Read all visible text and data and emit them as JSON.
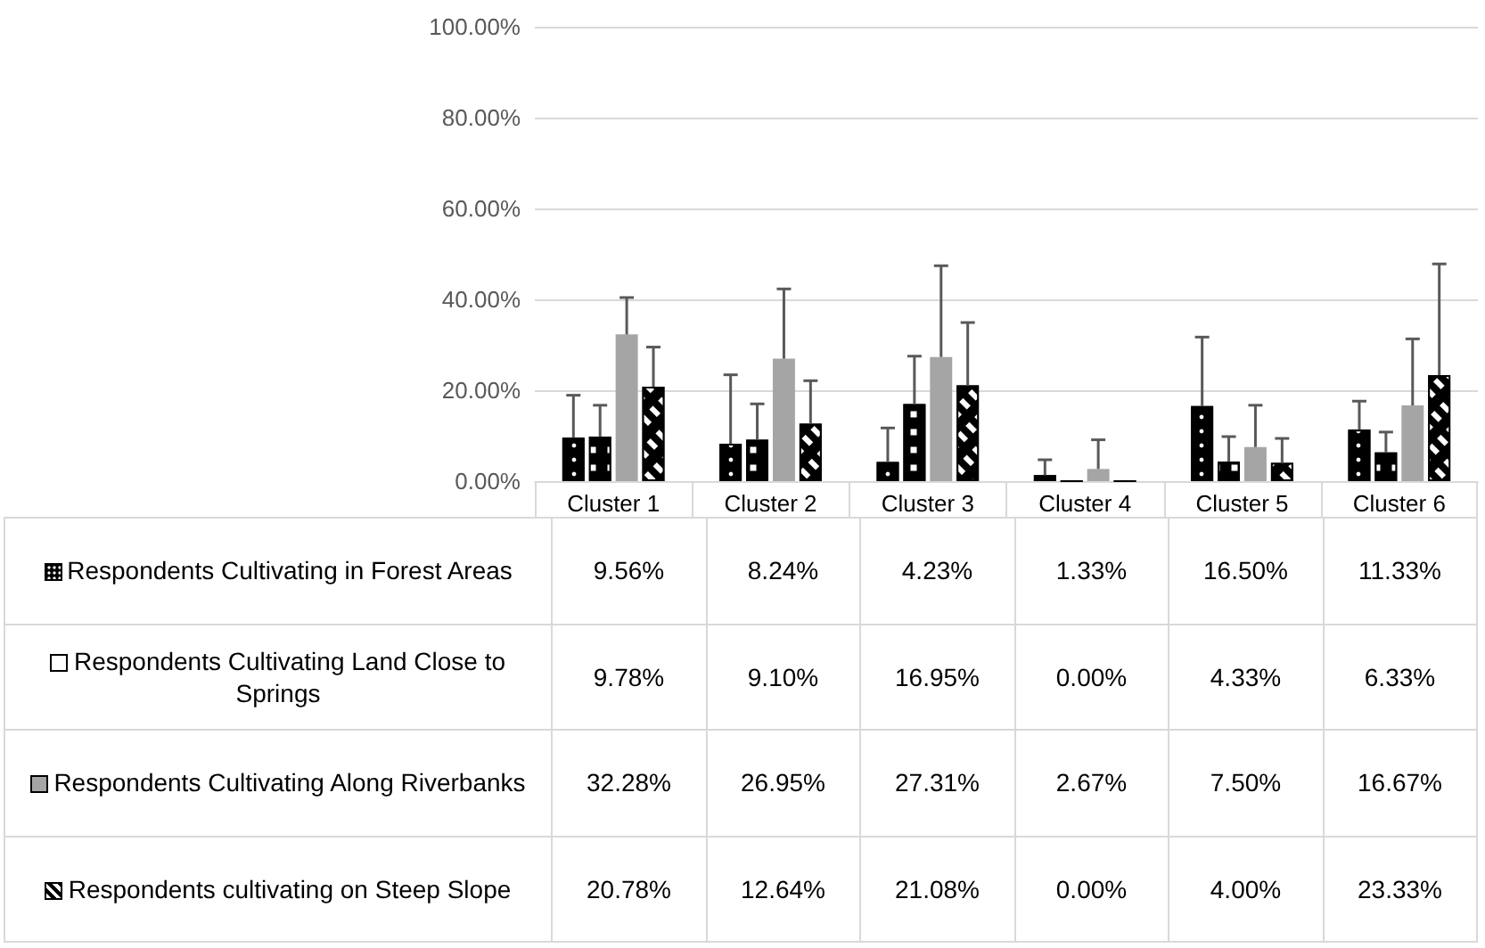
{
  "chart_data": {
    "type": "bar",
    "categories": [
      "Cluster 1",
      "Cluster 2",
      "Cluster 3",
      "Cluster 4",
      "Cluster 5",
      "Cluster 6"
    ],
    "ylim": [
      0,
      100
    ],
    "yticks": [
      {
        "value": 0,
        "label": "0.00%"
      },
      {
        "value": 20,
        "label": "20.00%"
      },
      {
        "value": 40,
        "label": "40.00%"
      },
      {
        "value": 60,
        "label": "60.00%"
      },
      {
        "value": 80,
        "label": "80.00%"
      },
      {
        "value": 100,
        "label": "100.00%"
      }
    ],
    "grid": "y",
    "legend": "bottom left",
    "series": [
      {
        "name": "Respondents Cultivating in Forest Areas",
        "color": "#000000",
        "values": [
          9.56,
          8.24,
          4.23,
          1.33,
          16.5,
          11.33
        ],
        "value_labels": [
          "9.56%",
          "8.24%",
          "4.23%",
          "1.33%",
          "16.50%",
          "11.33%"
        ],
        "errors": [
          [
            9.56,
            18.9
          ],
          [
            8.24,
            23.4
          ],
          [
            4.23,
            11.7
          ],
          [
            1.33,
            4.7
          ],
          [
            16.5,
            31.7
          ],
          [
            11.33,
            17.6
          ]
        ]
      },
      {
        "name": "Respondents Cultivating Land Close to Springs",
        "color": "#000000",
        "values": [
          9.78,
          9.1,
          16.95,
          0,
          4.33,
          6.33
        ],
        "value_labels": [
          "9.78%",
          "9.10%",
          "16.95%",
          "0.00%",
          "4.33%",
          "6.33%"
        ],
        "errors": [
          [
            9.78,
            16.7
          ],
          [
            9.1,
            17
          ],
          [
            16.95,
            27.5
          ],
          null,
          [
            4.33,
            9.8
          ],
          [
            6.33,
            10.8
          ]
        ]
      },
      {
        "name": "Respondents Cultivating Along Riverbanks",
        "color": "#a5a5a5",
        "values": [
          32.28,
          26.95,
          27.31,
          2.67,
          7.5,
          16.67
        ],
        "value_labels": [
          "32.28%",
          "26.95%",
          "27.31%",
          "2.67%",
          "7.50%",
          "16.67%"
        ],
        "errors": [
          [
            32.28,
            40.4
          ],
          [
            26.95,
            42.3
          ],
          [
            27.31,
            47.4
          ],
          [
            2.67,
            9.1
          ],
          [
            7.5,
            16.7
          ],
          [
            16.67,
            31.3
          ]
        ]
      },
      {
        "name": "Respondents cultivating on Steep Slope",
        "color": "#000000",
        "values": [
          20.78,
          12.64,
          21.08,
          0,
          4,
          23.33
        ],
        "value_labels": [
          "20.78%",
          "12.64%",
          "21.08%",
          "0.00%",
          "4.00%",
          "23.33%"
        ],
        "errors": [
          [
            20.78,
            29.5
          ],
          [
            12.64,
            22.1
          ],
          [
            21.08,
            34.9
          ],
          null,
          [
            4,
            9.4
          ],
          [
            23.33,
            47.8
          ]
        ]
      }
    ]
  }
}
